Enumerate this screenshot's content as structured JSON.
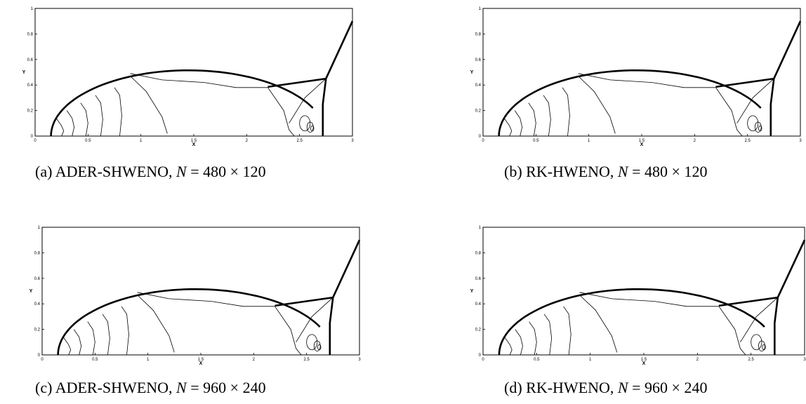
{
  "figure": {
    "panels": [
      {
        "id": "a",
        "caption": {
          "label": "(a)",
          "method": "ADER-SHWENO,",
          "var": "N",
          "eq": "=",
          "grid": "480 × 120"
        },
        "xlabel": "X",
        "ylabel": "Y",
        "xticks": [
          "0",
          "0.5",
          "1",
          "1.5",
          "2",
          "2.5",
          "3"
        ],
        "yticks": [
          "0",
          "0.2",
          "0.4",
          "0.6",
          "0.8",
          "1"
        ]
      },
      {
        "id": "b",
        "caption": {
          "label": "(b)",
          "method": "RK-HWENO,",
          "var": "N",
          "eq": "=",
          "grid": "480 × 120"
        },
        "xlabel": "X",
        "ylabel": "Y",
        "xticks": [
          "0",
          "0.5",
          "1",
          "1.5",
          "2",
          "2.5",
          "3"
        ],
        "yticks": [
          "0",
          "0.2",
          "0.4",
          "0.6",
          "0.8",
          "1"
        ]
      },
      {
        "id": "c",
        "caption": {
          "label": "(c)",
          "method": "ADER-SHWENO,",
          "var": "N",
          "eq": "=",
          "grid": "960 × 240"
        },
        "xlabel": "X",
        "ylabel": "Y",
        "xticks": [
          "0",
          "0.5",
          "1",
          "1.5",
          "2",
          "2.5",
          "3"
        ],
        "yticks": [
          "0",
          "0.2",
          "0.4",
          "0.6",
          "0.8",
          "1"
        ]
      },
      {
        "id": "d",
        "caption": {
          "label": "(d)",
          "method": "RK-HWENO,",
          "var": "N",
          "eq": "=",
          "grid": "960 × 240"
        },
        "xlabel": "X",
        "ylabel": "Y",
        "xticks": [
          "0",
          "0.5",
          "1",
          "1.5",
          "2",
          "2.5",
          "3"
        ],
        "yticks": [
          "0",
          "0.2",
          "0.4",
          "0.6",
          "0.8",
          "1"
        ]
      }
    ]
  }
}
